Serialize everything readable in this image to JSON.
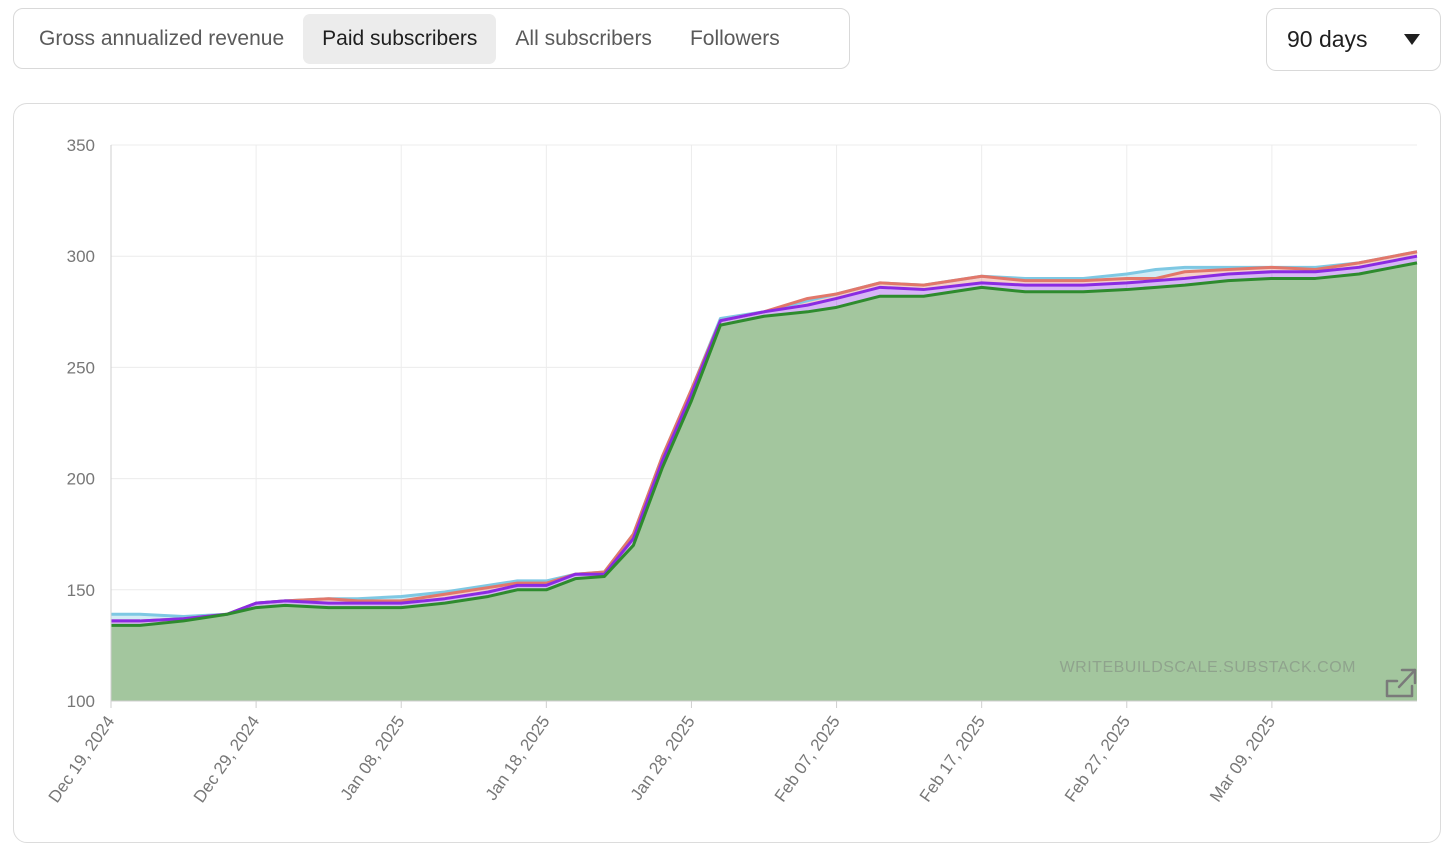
{
  "tabs": [
    {
      "label": "Gross annualized revenue",
      "active": false
    },
    {
      "label": "Paid subscribers",
      "active": true
    },
    {
      "label": "All subscribers",
      "active": false
    },
    {
      "label": "Followers",
      "active": false
    }
  ],
  "range": {
    "label": "90 days"
  },
  "watermark": "WRITEBUILDSCALE.SUBSTACK.COM",
  "icons": {
    "external_link": "external-link-icon",
    "range_caret": "caret-down-icon"
  },
  "chart_data": {
    "type": "area",
    "title": "",
    "xlabel": "",
    "ylabel": "",
    "ylim": [
      100,
      350
    ],
    "yticks": [
      100,
      150,
      200,
      250,
      300,
      350
    ],
    "xticks": [
      "Dec 19, 2024",
      "Dec 29, 2024",
      "Jan 08, 2025",
      "Jan 18, 2025",
      "Jan 28, 2025",
      "Feb 07, 2025",
      "Feb 17, 2025",
      "Feb 27, 2025",
      "Mar 09, 2025"
    ],
    "grid": true,
    "x_start": "2024-12-19",
    "x_end": "2025-03-19",
    "series": [
      {
        "color": "#7ec8e3",
        "points": [
          [
            "2024-12-19",
            139
          ],
          [
            "2024-12-21",
            139
          ],
          [
            "2024-12-24",
            138
          ],
          [
            "2024-12-27",
            139
          ],
          [
            "2024-12-29",
            144
          ],
          [
            "2024-12-31",
            145
          ],
          [
            "2025-01-03",
            146
          ],
          [
            "2025-01-05",
            146
          ],
          [
            "2025-01-08",
            147
          ],
          [
            "2025-01-11",
            149
          ],
          [
            "2025-01-14",
            152
          ],
          [
            "2025-01-16",
            154
          ],
          [
            "2025-01-18",
            154
          ],
          [
            "2025-01-20",
            157
          ],
          [
            "2025-01-22",
            158
          ],
          [
            "2025-01-24",
            175
          ],
          [
            "2025-01-26",
            210
          ],
          [
            "2025-01-28",
            240
          ],
          [
            "2025-01-30",
            272
          ],
          [
            "2025-02-02",
            275
          ],
          [
            "2025-02-05",
            280
          ],
          [
            "2025-02-07",
            283
          ],
          [
            "2025-02-10",
            288
          ],
          [
            "2025-02-13",
            287
          ],
          [
            "2025-02-17",
            291
          ],
          [
            "2025-02-20",
            290
          ],
          [
            "2025-02-24",
            290
          ],
          [
            "2025-02-27",
            292
          ],
          [
            "2025-03-01",
            294
          ],
          [
            "2025-03-03",
            295
          ],
          [
            "2025-03-06",
            295
          ],
          [
            "2025-03-09",
            295
          ],
          [
            "2025-03-12",
            295
          ],
          [
            "2025-03-15",
            297
          ],
          [
            "2025-03-19",
            302
          ]
        ]
      },
      {
        "color": "#e2776a",
        "points": [
          [
            "2024-12-19",
            136
          ],
          [
            "2024-12-21",
            136
          ],
          [
            "2024-12-24",
            137
          ],
          [
            "2024-12-27",
            139
          ],
          [
            "2024-12-29",
            144
          ],
          [
            "2024-12-31",
            145
          ],
          [
            "2025-01-03",
            146
          ],
          [
            "2025-01-05",
            145
          ],
          [
            "2025-01-08",
            145
          ],
          [
            "2025-01-11",
            148
          ],
          [
            "2025-01-14",
            151
          ],
          [
            "2025-01-16",
            153
          ],
          [
            "2025-01-18",
            153
          ],
          [
            "2025-01-20",
            157
          ],
          [
            "2025-01-22",
            158
          ],
          [
            "2025-01-24",
            175
          ],
          [
            "2025-01-26",
            210
          ],
          [
            "2025-01-28",
            240
          ],
          [
            "2025-01-30",
            271
          ],
          [
            "2025-02-02",
            275
          ],
          [
            "2025-02-05",
            281
          ],
          [
            "2025-02-07",
            283
          ],
          [
            "2025-02-10",
            288
          ],
          [
            "2025-02-13",
            287
          ],
          [
            "2025-02-17",
            291
          ],
          [
            "2025-02-20",
            289
          ],
          [
            "2025-02-24",
            289
          ],
          [
            "2025-02-27",
            290
          ],
          [
            "2025-03-01",
            290
          ],
          [
            "2025-03-03",
            293
          ],
          [
            "2025-03-06",
            294
          ],
          [
            "2025-03-09",
            295
          ],
          [
            "2025-03-12",
            294
          ],
          [
            "2025-03-15",
            297
          ],
          [
            "2025-03-19",
            302
          ]
        ]
      },
      {
        "color": "#8a2be2",
        "points": [
          [
            "2024-12-19",
            136
          ],
          [
            "2024-12-21",
            136
          ],
          [
            "2024-12-24",
            137
          ],
          [
            "2024-12-27",
            139
          ],
          [
            "2024-12-29",
            144
          ],
          [
            "2024-12-31",
            145
          ],
          [
            "2025-01-03",
            144
          ],
          [
            "2025-01-05",
            144
          ],
          [
            "2025-01-08",
            144
          ],
          [
            "2025-01-11",
            146
          ],
          [
            "2025-01-14",
            149
          ],
          [
            "2025-01-16",
            152
          ],
          [
            "2025-01-18",
            152
          ],
          [
            "2025-01-20",
            157
          ],
          [
            "2025-01-22",
            157
          ],
          [
            "2025-01-24",
            173
          ],
          [
            "2025-01-26",
            208
          ],
          [
            "2025-01-28",
            238
          ],
          [
            "2025-01-30",
            271
          ],
          [
            "2025-02-02",
            275
          ],
          [
            "2025-02-05",
            278
          ],
          [
            "2025-02-07",
            281
          ],
          [
            "2025-02-10",
            286
          ],
          [
            "2025-02-13",
            285
          ],
          [
            "2025-02-17",
            288
          ],
          [
            "2025-02-20",
            287
          ],
          [
            "2025-02-24",
            287
          ],
          [
            "2025-02-27",
            288
          ],
          [
            "2025-03-01",
            289
          ],
          [
            "2025-03-03",
            290
          ],
          [
            "2025-03-06",
            292
          ],
          [
            "2025-03-09",
            293
          ],
          [
            "2025-03-12",
            293
          ],
          [
            "2025-03-15",
            295
          ],
          [
            "2025-03-19",
            300
          ]
        ]
      },
      {
        "color": "#2e8b2e",
        "points": [
          [
            "2024-12-19",
            134
          ],
          [
            "2024-12-21",
            134
          ],
          [
            "2024-12-24",
            136
          ],
          [
            "2024-12-27",
            139
          ],
          [
            "2024-12-29",
            142
          ],
          [
            "2024-12-31",
            143
          ],
          [
            "2025-01-03",
            142
          ],
          [
            "2025-01-05",
            142
          ],
          [
            "2025-01-08",
            142
          ],
          [
            "2025-01-11",
            144
          ],
          [
            "2025-01-14",
            147
          ],
          [
            "2025-01-16",
            150
          ],
          [
            "2025-01-18",
            150
          ],
          [
            "2025-01-20",
            155
          ],
          [
            "2025-01-22",
            156
          ],
          [
            "2025-01-24",
            170
          ],
          [
            "2025-01-26",
            205
          ],
          [
            "2025-01-28",
            235
          ],
          [
            "2025-01-30",
            269
          ],
          [
            "2025-02-02",
            273
          ],
          [
            "2025-02-05",
            275
          ],
          [
            "2025-02-07",
            277
          ],
          [
            "2025-02-10",
            282
          ],
          [
            "2025-02-13",
            282
          ],
          [
            "2025-02-17",
            286
          ],
          [
            "2025-02-20",
            284
          ],
          [
            "2025-02-24",
            284
          ],
          [
            "2025-02-27",
            285
          ],
          [
            "2025-03-01",
            286
          ],
          [
            "2025-03-03",
            287
          ],
          [
            "2025-03-06",
            289
          ],
          [
            "2025-03-09",
            290
          ],
          [
            "2025-03-12",
            290
          ],
          [
            "2025-03-15",
            292
          ],
          [
            "2025-03-19",
            297
          ]
        ]
      }
    ],
    "fill_color": "#a3c69e"
  }
}
